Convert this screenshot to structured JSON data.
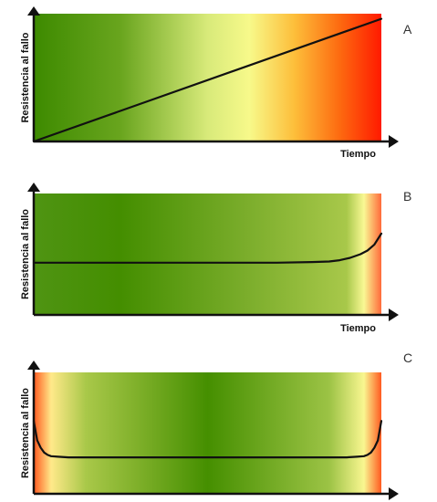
{
  "chart_data": [
    {
      "type": "line",
      "panel_label": "A",
      "xlabel": "Tiempo",
      "ylabel": "Resistencia al fallo",
      "xlim": [
        0,
        100
      ],
      "ylim": [
        0,
        100
      ],
      "grid": false,
      "background_gradient": [
        {
          "stop": 0.0,
          "color": "#3d8a00"
        },
        {
          "stop": 0.25,
          "color": "#69a51e"
        },
        {
          "stop": 0.5,
          "color": "#d8ea7a"
        },
        {
          "stop": 0.62,
          "color": "#f7f98a"
        },
        {
          "stop": 0.75,
          "color": "#fdbe3a"
        },
        {
          "stop": 0.88,
          "color": "#fd6a10"
        },
        {
          "stop": 1.0,
          "color": "#ff1a00"
        }
      ],
      "series": [
        {
          "x": [
            0,
            100
          ],
          "y": [
            0,
            96
          ],
          "color": "#111111"
        }
      ]
    },
    {
      "type": "line",
      "panel_label": "B",
      "xlabel": "Tiempo",
      "ylabel": "Resistencia al fallo",
      "xlim": [
        0,
        100
      ],
      "ylim": [
        0,
        100
      ],
      "grid": false,
      "background_gradient": [
        {
          "stop": 0.0,
          "color": "#4f9413"
        },
        {
          "stop": 0.25,
          "color": "#448e00"
        },
        {
          "stop": 0.6,
          "color": "#79ac2a"
        },
        {
          "stop": 0.9,
          "color": "#a8c84a"
        },
        {
          "stop": 0.95,
          "color": "#f9f894"
        },
        {
          "stop": 1.0,
          "color": "#ff6a3a"
        }
      ],
      "series": [
        {
          "x": [
            0,
            10,
            20,
            30,
            40,
            50,
            60,
            70,
            80,
            85,
            88,
            91,
            94,
            96,
            98,
            100
          ],
          "y": [
            43,
            43,
            43,
            43,
            43,
            43,
            43,
            43,
            43.5,
            44,
            45,
            47,
            50,
            53,
            58,
            67
          ],
          "color": "#111111"
        }
      ]
    },
    {
      "type": "line",
      "panel_label": "C",
      "xlabel": "",
      "ylabel": "Resistencia al fallo",
      "xlim": [
        0,
        100
      ],
      "ylim": [
        0,
        100
      ],
      "grid": false,
      "background_gradient": [
        {
          "stop": 0.0,
          "color": "#ff5a20"
        },
        {
          "stop": 0.05,
          "color": "#ffe98a"
        },
        {
          "stop": 0.15,
          "color": "#a9c849"
        },
        {
          "stop": 0.5,
          "color": "#458f00"
        },
        {
          "stop": 0.85,
          "color": "#9cc345"
        },
        {
          "stop": 0.95,
          "color": "#f9f690"
        },
        {
          "stop": 1.0,
          "color": "#ff5a20"
        }
      ],
      "series": [
        {
          "x": [
            0,
            0.5,
            1,
            2,
            3,
            4,
            5,
            7,
            10,
            20,
            40,
            60,
            80,
            90,
            93,
            95,
            96,
            97,
            98,
            99,
            99.5,
            100
          ],
          "y": [
            60,
            52,
            44,
            38,
            34,
            32,
            31,
            30.5,
            30,
            30,
            30,
            30,
            30,
            30,
            30.5,
            31,
            32,
            34,
            38,
            44,
            52,
            60
          ],
          "color": "#111111"
        }
      ]
    }
  ]
}
